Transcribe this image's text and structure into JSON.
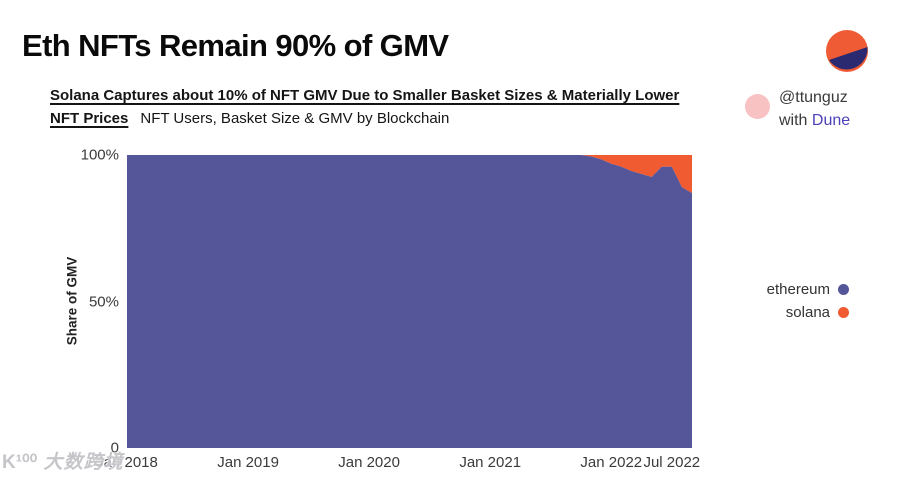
{
  "page": {
    "title": "Eth NFTs Remain 90% of GMV",
    "subtitle_line1_bold": "Solana Captures about 10% of NFT GMV Due to Smaller Basket Sizes & Materially Lower",
    "subtitle_line2_bold": "NFT Prices",
    "subtitle_line2_regular": "NFT Users, Basket Size & GMV by Blockchain"
  },
  "attribution": {
    "handle": "@ttunguz",
    "with_text": "with ",
    "brand": "Dune"
  },
  "colors": {
    "ethereum": "#555599",
    "solana": "#F05B32",
    "logo_orange": "#EF5B35",
    "logo_navy": "#2B2A70",
    "pink_dot": "#F9C2C2",
    "brand_purple": "#4B41B9"
  },
  "legend": [
    {
      "label": "ethereum",
      "color": "#555599"
    },
    {
      "label": "solana",
      "color": "#F05B32"
    }
  ],
  "watermark": {
    "logo": "K¹⁰⁰",
    "text": "大数跨境"
  },
  "chart_data": {
    "type": "area",
    "stacked": true,
    "title": "NFT Users, Basket Size & GMV by Blockchain",
    "ylabel": "Share of GMV",
    "ylim": [
      0,
      100
    ],
    "grid": false,
    "legend_position": "right",
    "y_ticks": [
      {
        "label": "100%",
        "value": 100
      },
      {
        "label": "50%",
        "value": 50
      },
      {
        "label": "0",
        "value": 0
      }
    ],
    "x_unit": "months since Jan 2018 (monthly points)",
    "x_count": 57,
    "x_ticks": [
      {
        "label": "Jan 2018",
        "index": 0
      },
      {
        "label": "Jan 2019",
        "index": 12
      },
      {
        "label": "Jan 2020",
        "index": 24
      },
      {
        "label": "Jan 2021",
        "index": 36
      },
      {
        "label": "Jan 2022",
        "index": 48
      },
      {
        "label": "Jul 2022",
        "index": 54
      }
    ],
    "series": [
      {
        "name": "ethereum",
        "color": "#555599",
        "values": [
          100,
          100,
          100,
          100,
          100,
          100,
          100,
          100,
          100,
          100,
          100,
          100,
          100,
          100,
          100,
          100,
          100,
          100,
          100,
          100,
          100,
          100,
          100,
          100,
          100,
          100,
          100,
          100,
          100,
          100,
          100,
          100,
          100,
          100,
          100,
          100,
          100,
          100,
          100,
          100,
          100,
          100,
          100,
          100,
          100,
          100,
          99.5,
          98.5,
          97,
          96,
          94.5,
          93.5,
          92.5,
          96,
          96,
          89,
          87
        ]
      },
      {
        "name": "solana",
        "color": "#F05B32",
        "values": [
          0,
          0,
          0,
          0,
          0,
          0,
          0,
          0,
          0,
          0,
          0,
          0,
          0,
          0,
          0,
          0,
          0,
          0,
          0,
          0,
          0,
          0,
          0,
          0,
          0,
          0,
          0,
          0,
          0,
          0,
          0,
          0,
          0,
          0,
          0,
          0,
          0,
          0,
          0,
          0,
          0,
          0,
          0,
          0,
          0,
          0,
          0.5,
          1.5,
          3,
          4,
          5.5,
          6.5,
          7.5,
          4,
          4,
          11,
          13
        ]
      }
    ]
  }
}
